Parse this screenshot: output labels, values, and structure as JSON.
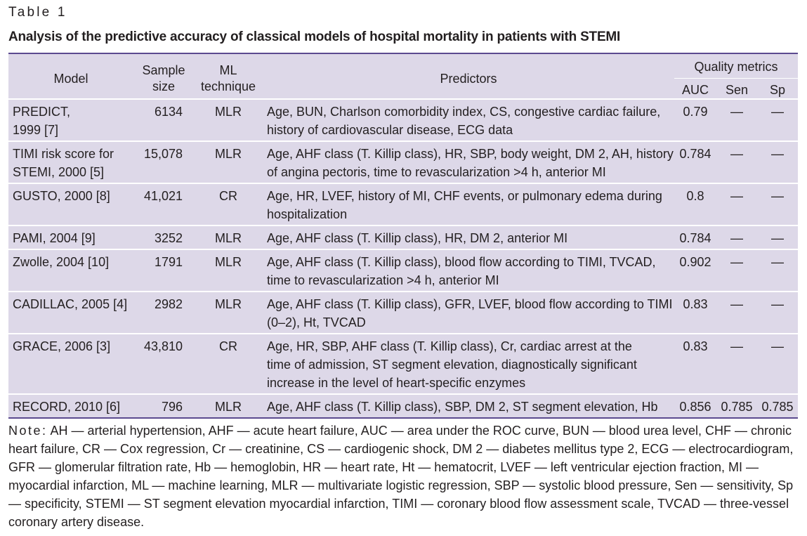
{
  "table_label": "Table 1",
  "caption": "Analysis of the predictive accuracy of classical models of hospital mortality in patients with STEMI",
  "header": {
    "model": "Model",
    "sample_size": "Sample size",
    "ml_technique": "ML technique",
    "predictors": "Predictors",
    "quality_metrics": "Quality metrics",
    "auc": "AUC",
    "sen": "Sen",
    "sp": "Sp"
  },
  "rows": [
    {
      "model": "PREDICT, 1999 [7]",
      "size": "6134",
      "ml": "MLR",
      "predictors": "Age, BUN, Charlson comorbidity index, CS, congestive cardiac failure, history of cardiovascular disease, ECG data",
      "auc": "0.79",
      "sen": "—",
      "sp": "—"
    },
    {
      "model": "TIMI risk score for STEMI, 2000 [5]",
      "size": "15,078",
      "ml": "MLR",
      "predictors": "Age, AHF class (T. Killip class), HR, SBP, body weight, DM 2, AH, history of angina pectoris, time to revascularization >4 h, anterior MI",
      "auc": "0.784",
      "sen": "—",
      "sp": "—"
    },
    {
      "model": "GUSTO, 2000 [8]",
      "size": "41,021",
      "ml": "CR",
      "predictors": "Age, HR, LVEF, history of MI, CHF events, or pulmonary edema during hospitalization",
      "auc": "0.8",
      "sen": "—",
      "sp": "—"
    },
    {
      "model": "PAMI, 2004 [9]",
      "size": "3252",
      "ml": "MLR",
      "predictors": "Age, AHF class (T. Killip class), HR, DM 2, anterior MI",
      "auc": "0.784",
      "sen": "—",
      "sp": "—"
    },
    {
      "model": "Zwolle, 2004 [10]",
      "size": "1791",
      "ml": "MLR",
      "predictors": "Age, AHF class (T. Killip class), blood flow according to TIMI, TVCAD, time to revascularization >4 h, anterior MI",
      "auc": "0.902",
      "sen": "—",
      "sp": "—"
    },
    {
      "model": "CADILLAC, 2005 [4]",
      "size": "2982",
      "ml": "MLR",
      "predictors": "Age, AHF class (T. Killip class), GFR, LVEF, blood flow according to TIMI (0–2), Ht, TVCAD",
      "auc": "0.83",
      "sen": "—",
      "sp": "—"
    },
    {
      "model": "GRACE, 2006 [3]",
      "size": "43,810",
      "ml": "CR",
      "predictors": "Age, HR, SBP, AHF class (T. Killip class), Cr, cardiac arrest at the time of admission, ST segment elevation, diagnostically significant increase in the level of heart-specific enzymes",
      "auc": "0.83",
      "sen": "—",
      "sp": "—"
    },
    {
      "model": "RECORD, 2010 [6]",
      "size": "796",
      "ml": "MLR",
      "predictors": "Age, AHF class (T. Killip class), SBP, DM 2, ST segment elevation, Hb",
      "auc": "0.856",
      "sen": "0.785",
      "sp": "0.785"
    }
  ],
  "note": {
    "lead": "Note:",
    "text": "AH — arterial hypertension, AHF — acute heart failure, AUC — area under the ROC curve, BUN — blood urea level, CHF — chronic heart failure, CR — Cox regression, Cr — creatinine, CS — cardiogenic shock, DM 2 — diabetes mellitus type 2, ECG — electrocardiogram, GFR — glomerular filtration rate, Hb — hemoglobin, HR — heart rate, Ht — hematocrit, LVEF — left ventricular ejection fraction, MI — myocardial infarction, ML — machine learning, MLR — multivariate logistic regression, SBP — systolic blood pressure, Sen — sensitivity, Sp — specificity, STEMI — ST segment elevation myocardial infarction, TIMI — coronary blood flow assessment scale, TVCAD — three-vessel coronary artery disease."
  },
  "colors": {
    "table_bg": "#ddd8e8",
    "rule": "#5b4a8f",
    "text": "#231f20"
  }
}
